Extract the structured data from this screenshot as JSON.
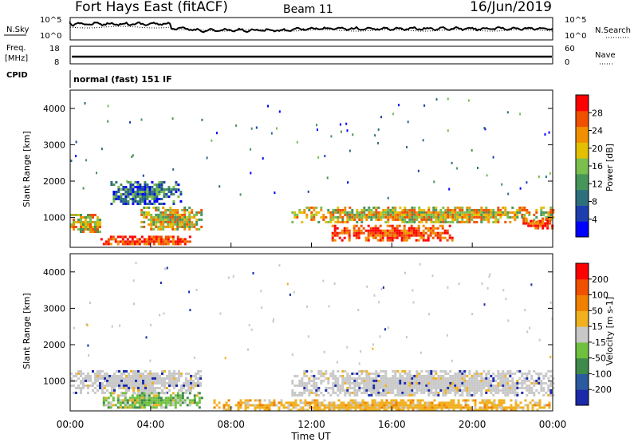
{
  "header": {
    "station": "Fort Hays East (fitACF)",
    "beam": "Beam 11",
    "date": "16/Jun/2019"
  },
  "noise_panel": {
    "left_label": "N.Sky",
    "right_label": "N.Search",
    "left_ticks": [
      "10^5",
      "10^0"
    ],
    "right_ticks": [
      "10^5",
      "10^0"
    ]
  },
  "freq_panel": {
    "left_label": "Freq.",
    "unit": "[MHz]",
    "left_ticks": [
      "18",
      "8"
    ],
    "right_label": "Nave",
    "right_ticks": [
      "60",
      "0"
    ]
  },
  "cpid": {
    "label": "CPID",
    "value": "normal (fast) 151 IF"
  },
  "x_axis": {
    "label": "Time UT",
    "ticks": [
      "00:00",
      "04:00",
      "08:00",
      "12:00",
      "16:00",
      "20:00",
      "00:00"
    ]
  },
  "chart_data": [
    {
      "type": "heatmap",
      "title": "",
      "xlabel": "Time UT",
      "ylabel": "Slant Range [km]",
      "xlim": [
        0,
        24
      ],
      "ylim": [
        180,
        4500
      ],
      "y_ticks": [
        "1000",
        "2000",
        "3000",
        "4000"
      ],
      "colorbar": {
        "label": "Power [dB]",
        "ticks": [
          "28",
          "24",
          "20",
          "16",
          "12",
          "8",
          "4"
        ],
        "colors": [
          "#0000ff",
          "#1d3fae",
          "#2e6f7e",
          "#46955a",
          "#7bbf4e",
          "#e3c000",
          "#f09000",
          "#f05000",
          "#ff0000"
        ]
      },
      "regions": [
        {
          "t0": 0.0,
          "t1": 1.5,
          "r0": 600,
          "r1": 1100,
          "level": "mid"
        },
        {
          "t0": 1.5,
          "t1": 6.0,
          "r0": 250,
          "r1": 500,
          "level": "high"
        },
        {
          "t0": 2.0,
          "t1": 5.5,
          "r0": 1400,
          "r1": 2000,
          "level": "low"
        },
        {
          "t0": 3.5,
          "t1": 6.5,
          "r0": 700,
          "r1": 1300,
          "level": "mid"
        },
        {
          "t0": 11.0,
          "t1": 24.0,
          "r0": 900,
          "r1": 1300,
          "level": "mid"
        },
        {
          "t0": 13.0,
          "t1": 19.0,
          "r0": 400,
          "r1": 800,
          "level": "high"
        },
        {
          "t0": 22.5,
          "t1": 24.0,
          "r0": 700,
          "r1": 1000,
          "level": "high"
        }
      ]
    },
    {
      "type": "heatmap",
      "title": "",
      "xlabel": "Time UT",
      "ylabel": "Slant Range [km]",
      "xlim": [
        0,
        24
      ],
      "ylim": [
        180,
        4500
      ],
      "y_ticks": [
        "1000",
        "2000",
        "3000",
        "4000"
      ],
      "colorbar": {
        "label": "Velocity [m s-1]",
        "ticks": [
          "200",
          "100",
          "50",
          "15",
          "-15",
          "-50",
          "-100",
          "-200"
        ],
        "colors": [
          "#1a2aa8",
          "#2c5a9e",
          "#3e8a4a",
          "#70c040",
          "#c8c8c8",
          "#f0b020",
          "#f08000",
          "#f05000",
          "#ff0000"
        ]
      },
      "regions": [
        {
          "t0": 0.0,
          "t1": 6.5,
          "r0": 700,
          "r1": 1300,
          "level": "near-zero"
        },
        {
          "t0": 1.5,
          "t1": 6.5,
          "r0": 250,
          "r1": 700,
          "level": "positive"
        },
        {
          "t0": 11.0,
          "t1": 24.0,
          "r0": 600,
          "r1": 1300,
          "level": "near-zero"
        },
        {
          "t0": 7.0,
          "t1": 24.0,
          "r0": 180,
          "r1": 500,
          "level": "negative"
        }
      ]
    }
  ]
}
